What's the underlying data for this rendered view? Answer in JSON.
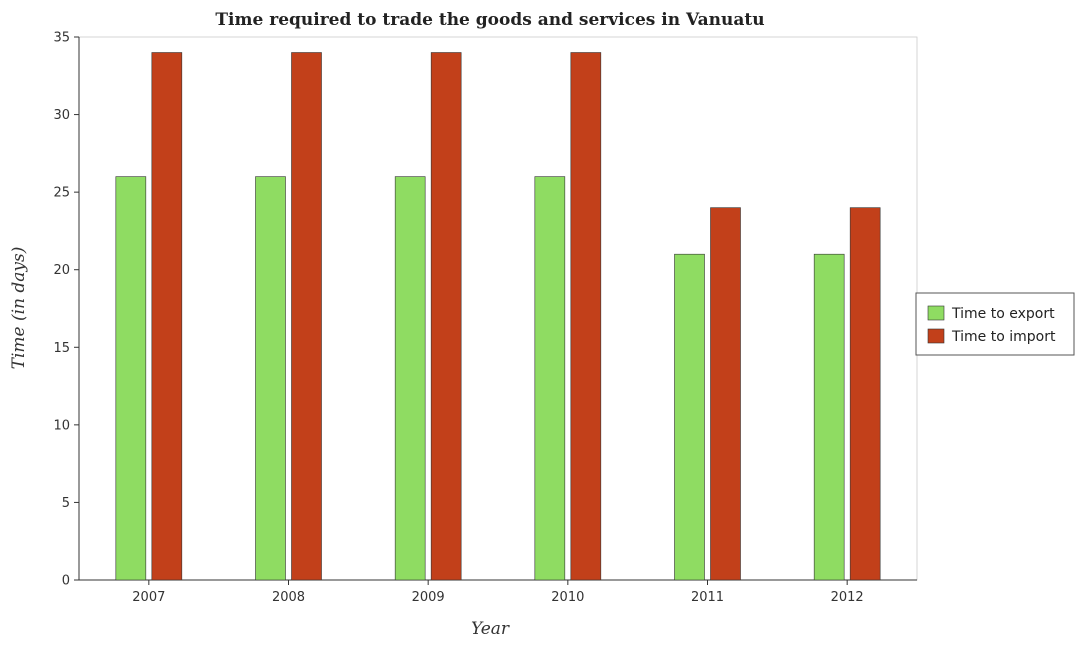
{
  "chart_data": {
    "type": "bar",
    "title": "Time required to trade the goods and services in Vanuatu",
    "xlabel": "Year",
    "ylabel": "Time (in days)",
    "categories": [
      "2007",
      "2008",
      "2009",
      "2010",
      "2011",
      "2012"
    ],
    "series": [
      {
        "name": "Time to export",
        "values": [
          26,
          26,
          26,
          26,
          21,
          21
        ],
        "color": "#8fdc62"
      },
      {
        "name": "Time to import",
        "values": [
          34,
          34,
          34,
          34,
          24,
          24
        ],
        "color": "#c2401a"
      }
    ],
    "ylim": [
      0,
      35
    ],
    "yticks": [
      0,
      5,
      10,
      15,
      20,
      25,
      30,
      35
    ],
    "grid": false,
    "legend": "right"
  }
}
